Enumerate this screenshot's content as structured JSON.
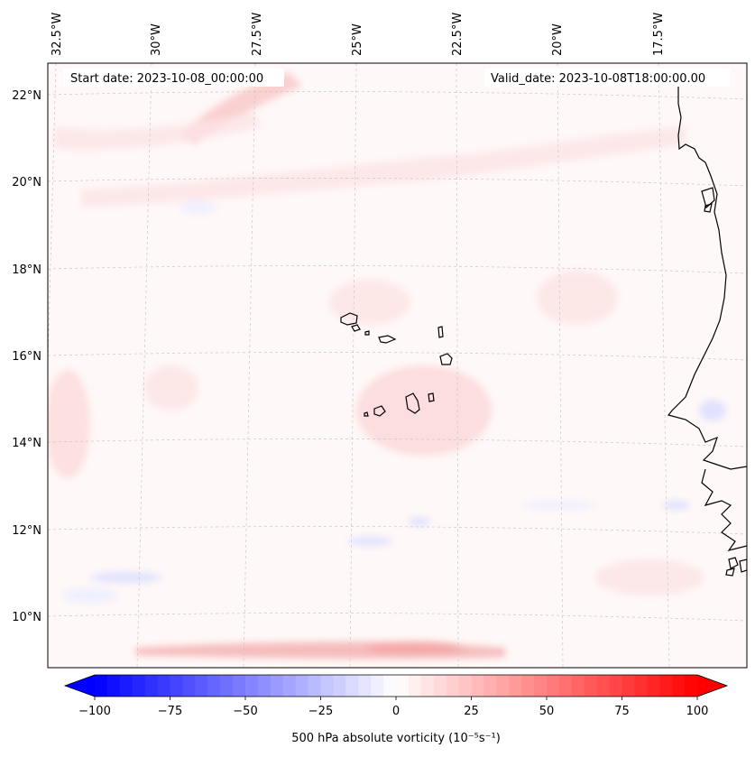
{
  "map": {
    "start_date": "Start date: 2023-10-08_00:00:00",
    "valid_date": "Valid_date: 2023-10-08T18:00:00.00",
    "lon_labels": [
      "32.5°W",
      "30°W",
      "27.5°W",
      "25°W",
      "22.5°W",
      "20°W",
      "17.5°W"
    ],
    "lat_labels": [
      "22°N",
      "20°N",
      "18°N",
      "16°N",
      "14°N",
      "12°N",
      "10°N"
    ],
    "gridlines": true
  },
  "colorbar": {
    "label": "500 hPa absolute vorticity (10⁻⁵s⁻¹)",
    "ticks": [
      "−100",
      "−75",
      "−50",
      "−25",
      "0",
      "25",
      "50",
      "75",
      "100"
    ],
    "tick_values": [
      -100,
      -75,
      -50,
      -25,
      0,
      25,
      50,
      75,
      100
    ],
    "min": -100,
    "max": 100,
    "levels": 48,
    "colormap": "bwr",
    "extend": "both",
    "color_low": "#0000ff",
    "color_mid": "#ffffff",
    "color_high": "#ff0000"
  }
}
